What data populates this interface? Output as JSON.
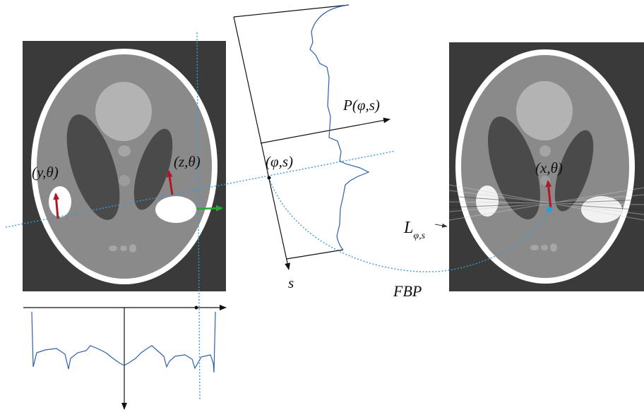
{
  "labels": {
    "y_theta": "(y,θ)",
    "z_theta": "(z,θ)",
    "phi_s": "(φ,s)",
    "projection": "P(φ,s)",
    "s_axis": "s",
    "x_theta": "(x,θ)",
    "line_L": "L",
    "line_L_sub": "φ,s",
    "fbp": "FBP"
  },
  "colors": {
    "background_panel": "#3a3a3a",
    "phantom_gray": "#8a8a8a",
    "skull_white": "#ffffff",
    "dark_ellipse": "#4a4a4a",
    "light_ellipse": "#b3b3b3",
    "ray_blue": "#3a9ad9",
    "profile_blue": "#2f5fb0",
    "arrow_red": "#b0182a",
    "arrow_green": "#22aa33",
    "axis_black": "#111111"
  },
  "icons": {
    "left_phantom": "shepp-logan-phantom",
    "right_phantom": "shepp-logan-reconstruction"
  }
}
